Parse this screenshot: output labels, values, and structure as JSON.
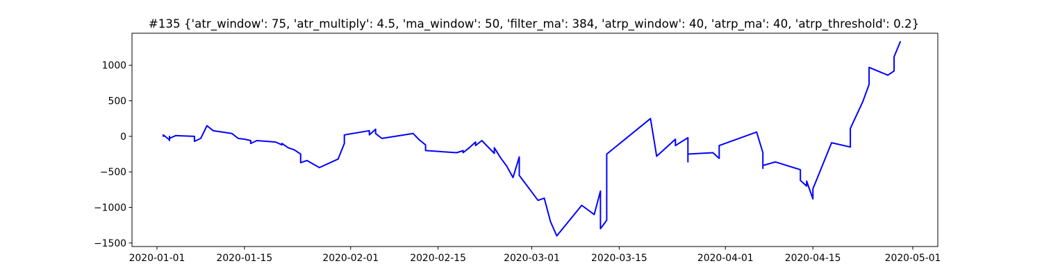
{
  "chart_data": {
    "type": "line",
    "title": "#135 {'atr_window': 75, 'atr_multiply': 4.5, 'ma_window': 50, 'filter_ma': 384, 'atrp_window': 40, 'atrp_ma': 40, 'atrp_threshold': 0.2}",
    "xlabel": "",
    "ylabel": "",
    "xlim": [
      "2019-12-28",
      "2020-05-05"
    ],
    "ylim": [
      -1550,
      1450
    ],
    "x_ticks": [
      "2020-01-01",
      "2020-01-15",
      "2020-02-01",
      "2020-02-15",
      "2020-03-01",
      "2020-03-15",
      "2020-04-01",
      "2020-04-15",
      "2020-05-01"
    ],
    "y_ticks": [
      -1500,
      -1000,
      -500,
      0,
      500,
      1000
    ],
    "grid": false,
    "line_color": "#0000ff",
    "series": [
      {
        "name": "",
        "x": [
          "2020-01-02",
          "2020-01-02",
          "2020-01-03",
          "2020-01-03",
          "2020-01-03",
          "2020-01-03",
          "2020-01-04",
          "2020-01-07",
          "2020-01-07",
          "2020-01-08",
          "2020-01-09",
          "2020-01-10",
          "2020-01-13",
          "2020-01-14",
          "2020-01-14",
          "2020-01-15",
          "2020-01-16",
          "2020-01-16",
          "2020-01-17",
          "2020-01-20",
          "2020-01-21",
          "2020-01-21",
          "2020-01-22",
          "2020-01-23",
          "2020-01-24",
          "2020-01-24",
          "2020-01-25",
          "2020-01-27",
          "2020-01-30",
          "2020-01-31",
          "2020-01-31",
          "2020-02-04",
          "2020-02-04",
          "2020-02-05",
          "2020-02-05",
          "2020-02-06",
          "2020-02-11",
          "2020-02-12",
          "2020-02-13",
          "2020-02-13",
          "2020-02-18",
          "2020-02-19",
          "2020-02-19",
          "2020-02-20",
          "2020-02-21",
          "2020-02-21",
          "2020-02-22",
          "2020-02-24",
          "2020-02-24",
          "2020-02-25",
          "2020-02-26",
          "2020-02-27",
          "2020-02-28",
          "2020-02-28",
          "2020-03-02",
          "2020-03-03",
          "2020-03-04",
          "2020-03-05",
          "2020-03-09",
          "2020-03-11",
          "2020-03-12",
          "2020-03-12",
          "2020-03-12",
          "2020-03-13",
          "2020-03-13",
          "2020-03-13",
          "2020-03-20",
          "2020-03-21",
          "2020-03-24",
          "2020-03-24",
          "2020-03-26",
          "2020-03-26",
          "2020-03-26",
          "2020-03-30",
          "2020-03-31",
          "2020-03-31",
          "2020-04-06",
          "2020-04-07",
          "2020-04-07",
          "2020-04-07",
          "2020-04-09",
          "2020-04-13",
          "2020-04-13",
          "2020-04-14",
          "2020-04-14",
          "2020-04-15",
          "2020-04-15",
          "2020-04-18",
          "2020-04-21",
          "2020-04-21",
          "2020-04-23",
          "2020-04-24",
          "2020-04-24",
          "2020-04-27",
          "2020-04-28",
          "2020-04-28",
          "2020-04-29"
        ],
        "y": [
          0,
          20,
          -50,
          0,
          -60,
          -30,
          10,
          0,
          -70,
          -30,
          150,
          80,
          40,
          -30,
          -30,
          -40,
          -60,
          -100,
          -60,
          -80,
          -120,
          -100,
          -160,
          -190,
          -250,
          -370,
          -340,
          -440,
          -320,
          -100,
          20,
          80,
          20,
          100,
          40,
          -30,
          40,
          -50,
          -120,
          -200,
          -230,
          -200,
          -230,
          -160,
          -80,
          -130,
          -60,
          -240,
          -160,
          -300,
          -420,
          -580,
          -290,
          -550,
          -900,
          -870,
          -1200,
          -1400,
          -970,
          -1100,
          -770,
          -1100,
          -1300,
          -1180,
          -680,
          -250,
          250,
          -280,
          -40,
          -130,
          -20,
          -360,
          -250,
          -230,
          -310,
          -130,
          60,
          -230,
          -450,
          -410,
          -360,
          -470,
          -620,
          -700,
          -630,
          -880,
          -740,
          -90,
          -150,
          110,
          490,
          730,
          970,
          860,
          920,
          1120,
          1330
        ]
      }
    ]
  }
}
